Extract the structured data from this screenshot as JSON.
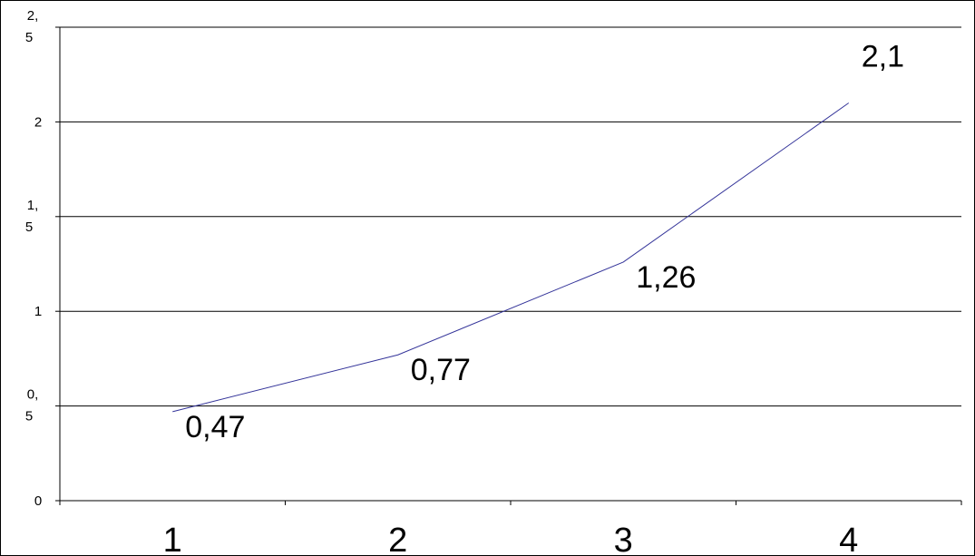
{
  "chart_data": {
    "type": "line",
    "categories": [
      "1",
      "2",
      "3",
      "4"
    ],
    "series": [
      {
        "color": "#333399",
        "values": [
          0.47,
          0.77,
          1.26,
          2.1
        ],
        "value_labels": [
          "0,47",
          "0,77",
          "1,26",
          "2,1"
        ]
      }
    ],
    "ylim": [
      0,
      2.5
    ],
    "yticks": [
      0,
      {
        "value": 0.5,
        "label": "0,5"
      },
      1,
      {
        "value": 1.5,
        "label": "1,5"
      },
      2,
      {
        "value": 2.5,
        "label": "2,5"
      }
    ],
    "grid": true
  }
}
